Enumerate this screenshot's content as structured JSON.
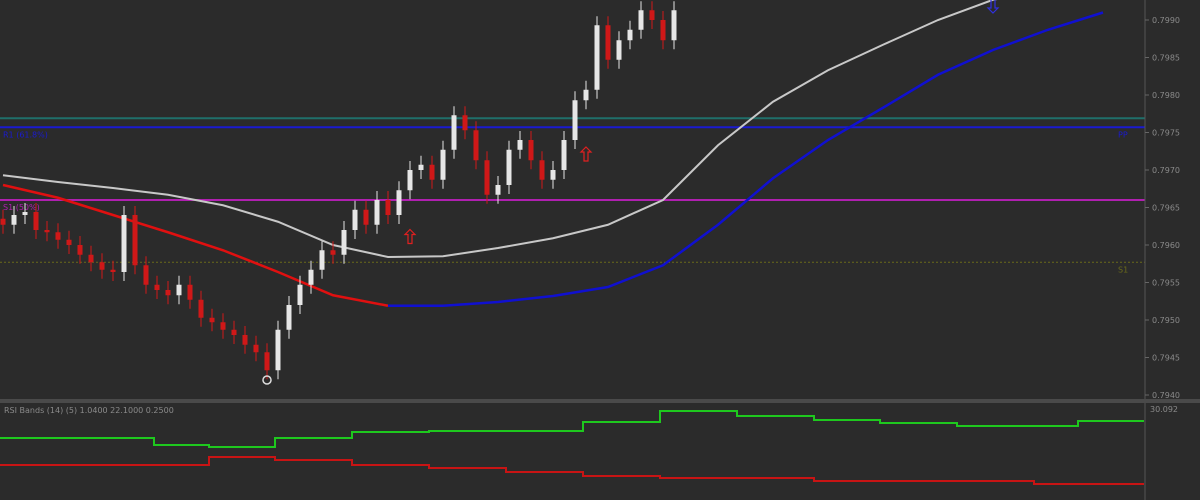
{
  "chart_data": {
    "type": "candlestick",
    "price_axis": {
      "ticks": [
        "0.7990",
        "0.7985",
        "0.7980",
        "0.7975",
        "0.7970",
        "0.7965",
        "0.7960",
        "0.7955",
        "0.7950",
        "0.7945",
        "0.7940"
      ],
      "range": [
        0.794,
        0.799
      ]
    },
    "candles_close": [
      0.79627,
      0.7964,
      0.79644,
      0.7962,
      0.79617,
      0.79607,
      0.796,
      0.79587,
      0.79577,
      0.79567,
      0.79564,
      0.7964,
      0.79573,
      0.79547,
      0.7954,
      0.79533,
      0.79547,
      0.79527,
      0.79503,
      0.79497,
      0.79487,
      0.7948,
      0.79467,
      0.79457,
      0.79433,
      0.79487,
      0.7952,
      0.79547,
      0.79567,
      0.79593,
      0.79587,
      0.7962,
      0.79647,
      0.79627,
      0.7966,
      0.7964,
      0.79673,
      0.797,
      0.79707,
      0.79687,
      0.79727,
      0.79773,
      0.79753,
      0.79713,
      0.79667,
      0.7968,
      0.79727,
      0.7974,
      0.79713,
      0.79687,
      0.797,
      0.7974,
      0.79793,
      0.79807,
      0.79893,
      0.79847,
      0.79873,
      0.79887,
      0.79913,
      0.799,
      0.79873,
      0.79913
    ],
    "moving_averages": [
      {
        "color": "#c8c8c8",
        "sample_every_bars": 5,
        "values": [
          0.79693,
          0.79684,
          0.79676,
          0.79667,
          0.79653,
          0.79631,
          0.796,
          0.79584,
          0.79585,
          0.79596,
          0.79609,
          0.79627,
          0.7966,
          0.79733,
          0.79791,
          0.79833,
          0.79867,
          0.799,
          0.79927,
          0.7994,
          0.79953
        ]
      },
      {
        "color_down": "#e01010",
        "color_up": "#1010d0",
        "color_switch_sample": 7,
        "sample_every_bars": 5,
        "values": [
          0.7968,
          0.79663,
          0.7964,
          0.79617,
          0.79593,
          0.79564,
          0.79533,
          0.79519,
          0.79519,
          0.79524,
          0.79532,
          0.79544,
          0.79573,
          0.79627,
          0.79689,
          0.7974,
          0.79783,
          0.79827,
          0.7986,
          0.79887,
          0.7991
        ]
      }
    ],
    "levels": [
      {
        "price": 0.79769,
        "color": "#1f6f6a",
        "label": "",
        "style": "solid"
      },
      {
        "price": 0.79757,
        "color": "#1a1ad0",
        "label": "R1 (61.8%)",
        "right_label": "PP",
        "style": "solid"
      },
      {
        "price": 0.7966,
        "color": "#b020b0",
        "label": "S1 (50%)",
        "style": "solid"
      },
      {
        "price": 0.79577,
        "color": "#6b6b1a",
        "label": "",
        "right_label": "S1",
        "style": "dotted"
      }
    ],
    "signals": [
      {
        "bar": 37,
        "price": 0.7961,
        "type": "arrow-up",
        "color": "#e02020"
      },
      {
        "bar": 53,
        "price": 0.7972,
        "type": "arrow-up",
        "color": "#e02020"
      },
      {
        "bar": 90,
        "price": 0.7992,
        "type": "arrow-down",
        "color": "#3030e0"
      },
      {
        "bar": 24,
        "price": 0.7942,
        "type": "circle",
        "color": "#dddddd"
      }
    ],
    "indicator": {
      "label": "RSI Bands (14) (5) 1.0400 22.1000 0.2500",
      "right_value": "30.092",
      "range": [
        0,
        100
      ],
      "series": [
        {
          "color": "#1ec81e",
          "steps": [
            [
              0,
              63.9
            ],
            [
              14,
              56.7
            ],
            [
              19,
              54.6
            ],
            [
              25,
              63.9
            ],
            [
              32,
              70.1
            ],
            [
              39,
              71.1
            ],
            [
              53,
              80.4
            ],
            [
              60,
              91.8
            ],
            [
              67,
              86.6
            ],
            [
              74,
              82.5
            ],
            [
              80,
              79.4
            ],
            [
              87,
              76.3
            ],
            [
              98,
              81.4
            ]
          ]
        },
        {
          "color": "#c81414",
          "steps": [
            [
              0,
              36.1
            ],
            [
              19,
              44.3
            ],
            [
              25,
              41.2
            ],
            [
              32,
              36.1
            ],
            [
              39,
              33.0
            ],
            [
              46,
              28.9
            ],
            [
              53,
              24.7
            ],
            [
              60,
              22.7
            ],
            [
              74,
              19.6
            ],
            [
              94,
              16.5
            ]
          ]
        }
      ]
    },
    "colors": {
      "background": "#2b2b2b",
      "bull": "#e6e6e6",
      "bear": "#d01818",
      "axis_text": "#8a8a8a"
    }
  }
}
